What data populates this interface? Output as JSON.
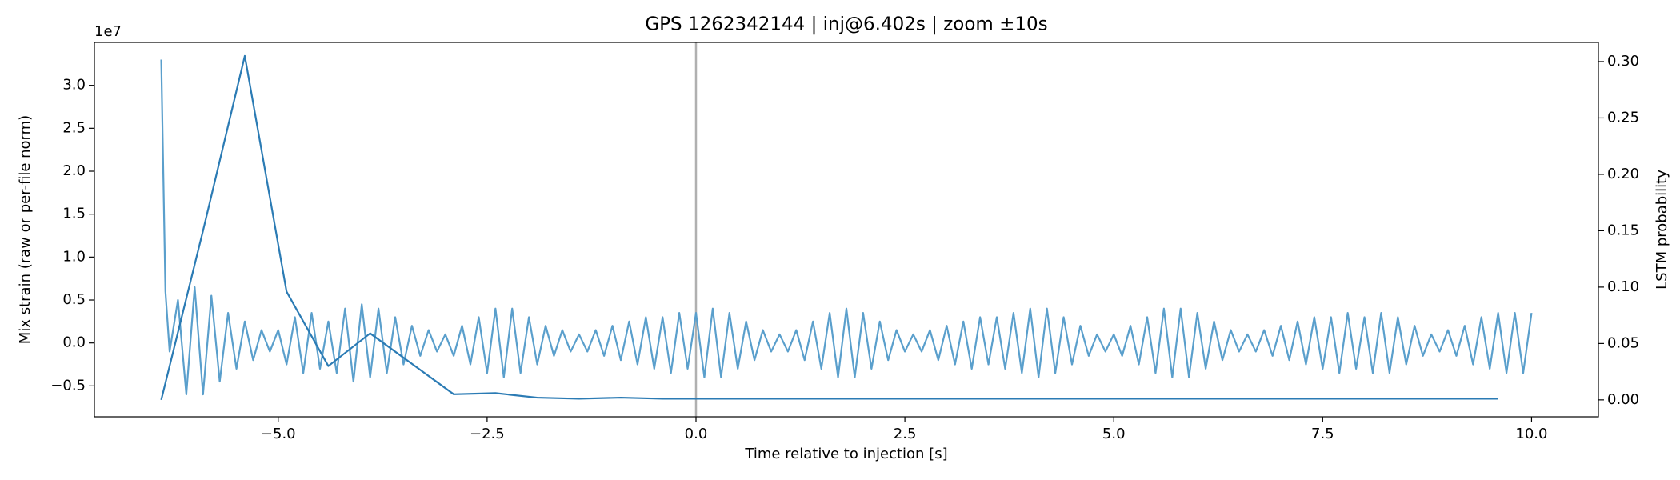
{
  "chart_data": {
    "type": "line",
    "title": "GPS 1262342144 | inj@6.402s | zoom ±10s",
    "x_label": "Time relative to injection [s]",
    "y_label": "Mix strain (raw or per-file norm)",
    "y2_label": "LSTM probability",
    "y_offset_label": "1e7",
    "xlim": [
      -7.2,
      10.8
    ],
    "ylim": [
      -0.86,
      3.5
    ],
    "y2lim": [
      -0.015,
      0.317
    ],
    "xticks": [
      {
        "value": -5,
        "label": "−5.0"
      },
      {
        "value": -2.5,
        "label": "−2.5"
      },
      {
        "value": 0,
        "label": "0.0"
      },
      2.5,
      {
        "value": 5,
        "label": "5.0"
      },
      7.5,
      {
        "value": 10,
        "label": "10.0"
      }
    ],
    "yticks": [
      {
        "value": -0.5,
        "label": "−0.5"
      },
      {
        "value": 0,
        "label": "0.0"
      },
      0.5,
      {
        "value": 1,
        "label": "1.0"
      },
      1.5,
      {
        "value": 2,
        "label": "2.0"
      },
      2.5,
      {
        "value": 3,
        "label": "3.0"
      }
    ],
    "y2ticks": [
      {
        "value": 0,
        "label": "0.00"
      },
      {
        "value": 0.05,
        "label": "0.05"
      },
      {
        "value": 0.1,
        "label": "0.10"
      },
      {
        "value": 0.15,
        "label": "0.15"
      },
      {
        "value": 0.2,
        "label": "0.20"
      },
      {
        "value": 0.25,
        "label": "0.25"
      },
      {
        "value": 0.3,
        "label": "0.30"
      }
    ],
    "vline": {
      "x": 0,
      "color": "#b0b0b0"
    },
    "series": [
      {
        "color": "#5a9fcc",
        "x": [
          -6.4,
          -6.35,
          -6.3,
          -6.2,
          -6.1,
          -6.0,
          -5.9,
          -5.8,
          -5.7,
          -5.6,
          -5.5,
          -5.4,
          -5.3,
          -5.2,
          -5.1,
          -5.0,
          -4.9,
          -4.8,
          -4.7,
          -4.6,
          -4.5,
          -4.4,
          -4.3,
          -4.2,
          -4.1,
          -4.0,
          -3.9,
          -3.8,
          -3.7,
          -3.6,
          -3.5,
          -3.4,
          -3.3,
          -3.2,
          -3.1,
          -3.0,
          -2.9,
          -2.8,
          -2.7,
          -2.6,
          -2.5,
          -2.4,
          -2.3,
          -2.2,
          -2.1,
          -2.0,
          -1.9,
          -1.8,
          -1.7,
          -1.6,
          -1.5,
          -1.4,
          -1.3,
          -1.2,
          -1.1,
          -1.0,
          -0.9,
          -0.8,
          -0.7,
          -0.6,
          -0.5,
          -0.4,
          -0.3,
          -0.2,
          -0.1,
          0.0,
          0.1,
          0.2,
          0.3,
          0.4,
          0.5,
          0.6,
          0.7,
          0.8,
          0.9,
          1.0,
          1.1,
          1.2,
          1.3,
          1.4,
          1.5,
          1.6,
          1.7,
          1.8,
          1.9,
          2.0,
          2.1,
          2.2,
          2.3,
          2.4,
          2.5,
          2.6,
          2.7,
          2.8,
          2.9,
          3.0,
          3.1,
          3.2,
          3.3,
          3.4,
          3.5,
          3.6,
          3.7,
          3.8,
          3.9,
          4.0,
          4.1,
          4.2,
          4.3,
          4.4,
          4.5,
          4.6,
          4.7,
          4.8,
          4.9,
          5.0,
          5.1,
          5.2,
          5.3,
          5.4,
          5.5,
          5.6,
          5.7,
          5.8,
          5.9,
          6.0,
          6.1,
          6.2,
          6.3,
          6.4,
          6.5,
          6.6,
          6.7,
          6.8,
          6.9,
          7.0,
          7.1,
          7.2,
          7.3,
          7.4,
          7.5,
          7.6,
          7.7,
          7.8,
          7.9,
          8.0,
          8.1,
          8.2,
          8.3,
          8.4,
          8.5,
          8.6,
          8.7,
          8.8,
          8.9,
          9.0,
          9.1,
          9.2,
          9.3,
          9.4,
          9.5,
          9.6,
          9.7,
          9.8,
          9.9,
          10.0
        ],
        "values": [
          3.3,
          0.6,
          -0.1,
          0.5,
          -0.6,
          0.65,
          -0.6,
          0.55,
          -0.45,
          0.35,
          -0.3,
          0.25,
          -0.2,
          0.15,
          -0.1,
          0.15,
          -0.25,
          0.3,
          -0.35,
          0.35,
          -0.3,
          0.25,
          -0.35,
          0.4,
          -0.45,
          0.45,
          -0.4,
          0.4,
          -0.35,
          0.3,
          -0.25,
          0.2,
          -0.15,
          0.15,
          -0.1,
          0.1,
          -0.15,
          0.2,
          -0.25,
          0.3,
          -0.35,
          0.4,
          -0.4,
          0.4,
          -0.35,
          0.3,
          -0.25,
          0.2,
          -0.15,
          0.15,
          -0.1,
          0.1,
          -0.1,
          0.15,
          -0.15,
          0.2,
          -0.2,
          0.25,
          -0.25,
          0.3,
          -0.3,
          0.3,
          -0.35,
          0.35,
          -0.3,
          0.35,
          -0.4,
          0.4,
          -0.4,
          0.35,
          -0.3,
          0.25,
          -0.2,
          0.15,
          -0.1,
          0.1,
          -0.1,
          0.15,
          -0.2,
          0.25,
          -0.3,
          0.35,
          -0.4,
          0.4,
          -0.4,
          0.35,
          -0.3,
          0.25,
          -0.2,
          0.15,
          -0.1,
          0.1,
          -0.1,
          0.15,
          -0.2,
          0.2,
          -0.25,
          0.25,
          -0.3,
          0.3,
          -0.25,
          0.3,
          -0.3,
          0.35,
          -0.35,
          0.4,
          -0.4,
          0.4,
          -0.35,
          0.3,
          -0.25,
          0.2,
          -0.15,
          0.1,
          -0.1,
          0.1,
          -0.15,
          0.2,
          -0.25,
          0.3,
          -0.35,
          0.4,
          -0.4,
          0.4,
          -0.4,
          0.35,
          -0.3,
          0.25,
          -0.2,
          0.15,
          -0.1,
          0.1,
          -0.1,
          0.15,
          -0.15,
          0.2,
          -0.2,
          0.25,
          -0.25,
          0.3,
          -0.3,
          0.3,
          -0.35,
          0.35,
          -0.3,
          0.3,
          -0.35,
          0.35,
          -0.35,
          0.3,
          -0.25,
          0.2,
          -0.15,
          0.1,
          -0.1,
          0.15,
          -0.15,
          0.2,
          -0.25,
          0.3,
          -0.3,
          0.35,
          -0.35,
          0.35,
          -0.35,
          0.35
        ]
      },
      {
        "color": "#2b7bb4",
        "axis": "y2",
        "x": [
          -6.4,
          -5.9,
          -5.4,
          -4.9,
          -4.4,
          -3.9,
          -3.4,
          -2.9,
          -2.4,
          -1.9,
          -1.4,
          -0.9,
          -0.4,
          0.1,
          0.6,
          1.1,
          1.6,
          2.1,
          2.6,
          3.1,
          3.6,
          4.1,
          4.6,
          5.1,
          5.6,
          6.1,
          6.6,
          7.1,
          7.6,
          8.1,
          8.6,
          9.1,
          9.6
        ],
        "values": [
          0,
          0.15,
          0.305,
          0.096,
          0.03,
          0.059,
          0.032,
          0.005,
          0.006,
          0.002,
          0.001,
          0.002,
          0.001,
          0.001,
          0.001,
          0.001,
          0.001,
          0.001,
          0.001,
          0.001,
          0.001,
          0.001,
          0.001,
          0.001,
          0.001,
          0.001,
          0.001,
          0.001,
          0.001,
          0.001,
          0.001,
          0.001,
          0.001
        ]
      }
    ]
  }
}
